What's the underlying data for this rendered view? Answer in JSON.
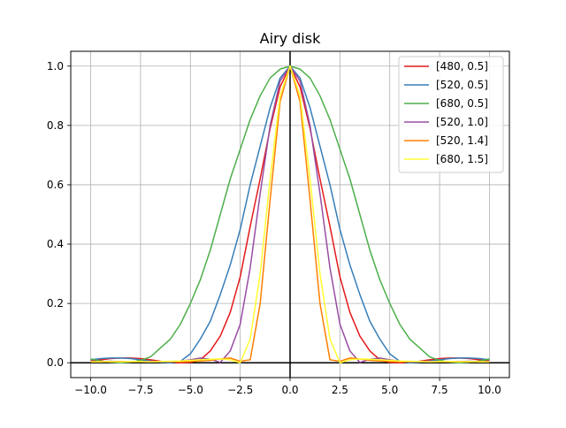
{
  "chart_data": {
    "type": "line",
    "title": "Airy disk",
    "xlabel": "",
    "ylabel": "",
    "xlim": [
      -11.0,
      11.0
    ],
    "ylim": [
      -0.05,
      1.05
    ],
    "grid": true,
    "legend_position": "top-right",
    "x_ticks": [
      -10.0,
      -7.5,
      -5.0,
      -2.5,
      0.0,
      2.5,
      5.0,
      7.5,
      10.0
    ],
    "x_tick_labels": [
      "−10.0",
      "−7.5",
      "−5.0",
      "−2.5",
      "0.0",
      "2.5",
      "5.0",
      "7.5",
      "10.0"
    ],
    "y_ticks": [
      0.0,
      0.2,
      0.4,
      0.6,
      0.8,
      1.0
    ],
    "y_tick_labels": [
      "0.0",
      "0.2",
      "0.4",
      "0.6",
      "0.8",
      "1.0"
    ],
    "x": [
      -10.0,
      -9.5,
      -9.0,
      -8.5,
      -8.0,
      -7.5,
      -7.0,
      -6.5,
      -6.0,
      -5.5,
      -5.0,
      -4.5,
      -4.0,
      -3.5,
      -3.0,
      -2.5,
      -2.0,
      -1.5,
      -1.0,
      -0.5,
      0.0,
      0.5,
      1.0,
      1.5,
      2.0,
      2.5,
      3.0,
      3.5,
      4.0,
      4.5,
      5.0,
      5.5,
      6.0,
      6.5,
      7.0,
      7.5,
      8.0,
      8.5,
      9.0,
      9.5,
      10.0
    ],
    "series": [
      {
        "name": "[480, 0.5]",
        "color": "#e41a1c",
        "values": [
          0.005,
          0.01,
          0.014,
          0.016,
          0.016,
          0.014,
          0.01,
          0.005,
          0.002,
          0.0,
          0.001,
          0.01,
          0.04,
          0.09,
          0.17,
          0.29,
          0.46,
          0.62,
          0.79,
          0.93,
          1.0,
          0.93,
          0.79,
          0.62,
          0.46,
          0.29,
          0.17,
          0.09,
          0.04,
          0.01,
          0.001,
          0.0,
          0.002,
          0.005,
          0.01,
          0.014,
          0.016,
          0.016,
          0.014,
          0.01,
          0.005
        ]
      },
      {
        "name": "[520, 0.5]",
        "color": "#377eb8",
        "values": [
          0.01,
          0.014,
          0.016,
          0.016,
          0.014,
          0.01,
          0.006,
          0.002,
          0.0,
          0.005,
          0.03,
          0.08,
          0.14,
          0.23,
          0.33,
          0.45,
          0.6,
          0.73,
          0.86,
          0.96,
          1.0,
          0.96,
          0.86,
          0.73,
          0.6,
          0.45,
          0.33,
          0.23,
          0.14,
          0.08,
          0.03,
          0.005,
          0.0,
          0.002,
          0.006,
          0.01,
          0.014,
          0.016,
          0.016,
          0.014,
          0.01
        ]
      },
      {
        "name": "[680, 0.5]",
        "color": "#4daf4a",
        "values": [
          0.013,
          0.006,
          0.002,
          0.0,
          0.002,
          0.008,
          0.02,
          0.05,
          0.08,
          0.13,
          0.2,
          0.28,
          0.38,
          0.5,
          0.62,
          0.72,
          0.82,
          0.9,
          0.96,
          0.99,
          1.0,
          0.99,
          0.96,
          0.9,
          0.82,
          0.72,
          0.62,
          0.5,
          0.38,
          0.28,
          0.2,
          0.13,
          0.08,
          0.05,
          0.02,
          0.008,
          0.002,
          0.0,
          0.002,
          0.006,
          0.013
        ]
      },
      {
        "name": "[520, 1.0]",
        "color": "#984ea3",
        "values": [
          0.003,
          0.004,
          0.005,
          0.004,
          0.003,
          0.004,
          0.005,
          0.004,
          0.003,
          0.005,
          0.01,
          0.016,
          0.012,
          0.001,
          0.04,
          0.13,
          0.32,
          0.57,
          0.8,
          0.95,
          1.0,
          0.95,
          0.8,
          0.57,
          0.32,
          0.13,
          0.04,
          0.001,
          0.012,
          0.016,
          0.01,
          0.005,
          0.003,
          0.004,
          0.005,
          0.004,
          0.003,
          0.004,
          0.005,
          0.004,
          0.003
        ]
      },
      {
        "name": "[520, 1.4]",
        "color": "#ff7f00",
        "values": [
          0.003,
          0.004,
          0.003,
          0.004,
          0.003,
          0.004,
          0.003,
          0.004,
          0.004,
          0.003,
          0.004,
          0.006,
          0.008,
          0.013,
          0.016,
          0.005,
          0.01,
          0.2,
          0.55,
          0.88,
          1.0,
          0.88,
          0.55,
          0.2,
          0.01,
          0.005,
          0.016,
          0.013,
          0.008,
          0.006,
          0.004,
          0.003,
          0.004,
          0.004,
          0.003,
          0.004,
          0.003,
          0.004,
          0.003,
          0.004,
          0.003
        ]
      },
      {
        "name": "[680, 1.5]",
        "color": "#ffff33",
        "values": [
          0.003,
          0.003,
          0.004,
          0.003,
          0.004,
          0.004,
          0.003,
          0.004,
          0.005,
          0.006,
          0.008,
          0.01,
          0.012,
          0.013,
          0.01,
          0.0,
          0.08,
          0.3,
          0.62,
          0.9,
          1.0,
          0.9,
          0.62,
          0.3,
          0.08,
          0.0,
          0.01,
          0.013,
          0.012,
          0.01,
          0.008,
          0.006,
          0.005,
          0.004,
          0.003,
          0.004,
          0.004,
          0.003,
          0.004,
          0.003,
          0.003
        ]
      }
    ]
  }
}
